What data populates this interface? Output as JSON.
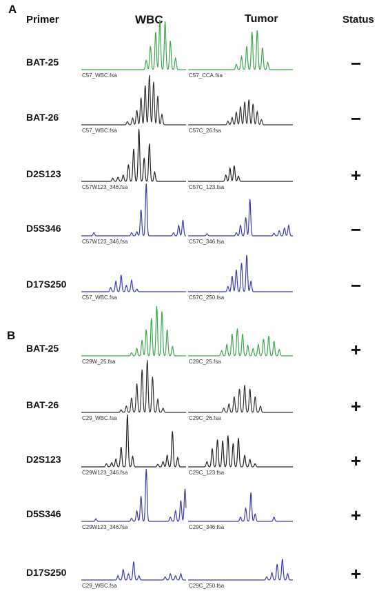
{
  "headers": {
    "primer": "Primer",
    "wbc": "WBC",
    "tumor": "Tumor",
    "status": "Status"
  },
  "panels": [
    {
      "letter": "A",
      "rows": [
        {
          "primer": "BAT-25",
          "status": "−",
          "color": "#3aa84a",
          "wbc": {
            "file": "C57_WBC.fsa",
            "peaks": [
              [
                0.62,
                0.18
              ],
              [
                0.66,
                0.45
              ],
              [
                0.71,
                0.72
              ],
              [
                0.75,
                0.95
              ],
              [
                0.8,
                0.92
              ],
              [
                0.85,
                0.55
              ],
              [
                0.9,
                0.22
              ]
            ]
          },
          "tumor": {
            "file": "C57_CCA.fsa",
            "peaks": [
              [
                0.46,
                0.1
              ],
              [
                0.51,
                0.25
              ],
              [
                0.56,
                0.45
              ],
              [
                0.61,
                0.72
              ],
              [
                0.66,
                0.75
              ],
              [
                0.71,
                0.42
              ],
              [
                0.76,
                0.14
              ]
            ]
          }
        },
        {
          "primer": "BAT-26",
          "status": "−",
          "color": "#333333",
          "wbc": {
            "file": "C57_WBC.fsa",
            "peaks": [
              [
                0.44,
                0.06
              ],
              [
                0.49,
                0.13
              ],
              [
                0.53,
                0.28
              ],
              [
                0.57,
                0.52
              ],
              [
                0.61,
                0.75
              ],
              [
                0.65,
                0.95
              ],
              [
                0.69,
                0.82
              ],
              [
                0.73,
                0.55
              ],
              [
                0.77,
                0.2
              ]
            ]
          },
          "tumor": {
            "file": "C57C_26.fsa",
            "peaks": [
              [
                0.38,
                0.07
              ],
              [
                0.42,
                0.14
              ],
              [
                0.46,
                0.24
              ],
              [
                0.5,
                0.35
              ],
              [
                0.54,
                0.44
              ],
              [
                0.58,
                0.48
              ],
              [
                0.62,
                0.4
              ],
              [
                0.66,
                0.25
              ],
              [
                0.7,
                0.1
              ]
            ]
          }
        },
        {
          "primer": "D2S123",
          "status": "+",
          "color": "#222222",
          "wbc": {
            "file": "C57W123_346.fsa",
            "peaks": [
              [
                0.3,
                0.06
              ],
              [
                0.35,
                0.08
              ],
              [
                0.4,
                0.12
              ],
              [
                0.45,
                0.32
              ],
              [
                0.5,
                0.62
              ],
              [
                0.55,
                1.0
              ],
              [
                0.6,
                0.45
              ],
              [
                0.65,
                0.72
              ],
              [
                0.7,
                0.18
              ]
            ]
          },
          "tumor": {
            "file": "C57C_123.fsa",
            "peaks": [
              [
                0.36,
                0.12
              ],
              [
                0.4,
                0.25
              ],
              [
                0.44,
                0.3
              ],
              [
                0.48,
                0.1
              ]
            ]
          }
        },
        {
          "primer": "D5S346",
          "status": "−",
          "color": "#3b3bb0",
          "wbc": {
            "file": "C57W123_346.fsa",
            "peaks": [
              [
                0.12,
                0.06
              ],
              [
                0.48,
                0.06
              ],
              [
                0.53,
                0.08
              ],
              [
                0.57,
                0.5
              ],
              [
                0.62,
                1.0
              ],
              [
                0.88,
                0.06
              ],
              [
                0.93,
                0.2
              ],
              [
                0.97,
                0.3
              ]
            ]
          },
          "tumor": {
            "file": "C57C_346.fsa",
            "peaks": [
              [
                0.18,
                0.04
              ],
              [
                0.46,
                0.06
              ],
              [
                0.5,
                0.2
              ],
              [
                0.55,
                0.35
              ],
              [
                0.59,
                0.7
              ],
              [
                0.82,
                0.05
              ],
              [
                0.87,
                0.1
              ],
              [
                0.92,
                0.15
              ],
              [
                0.96,
                0.2
              ]
            ]
          }
        },
        {
          "primer": "D17S250",
          "status": "−",
          "color": "#3b3bb0",
          "wbc": {
            "file": "C57_WBC.fsa",
            "peaks": [
              [
                0.28,
                0.08
              ],
              [
                0.33,
                0.2
              ],
              [
                0.38,
                0.32
              ],
              [
                0.43,
                0.12
              ],
              [
                0.48,
                0.22
              ],
              [
                0.53,
                0.05
              ]
            ]
          },
          "tumor": {
            "file": "C57C_250.fsa",
            "peaks": [
              [
                0.38,
                0.1
              ],
              [
                0.42,
                0.3
              ],
              [
                0.46,
                0.42
              ],
              [
                0.51,
                0.55
              ],
              [
                0.56,
                0.7
              ],
              [
                0.6,
                0.2
              ]
            ]
          }
        }
      ]
    },
    {
      "letter": "B",
      "rows": [
        {
          "primer": "BAT-25",
          "status": "+",
          "color": "#3aa84a",
          "wbc": {
            "file": "C29W_25.fsa",
            "peaks": [
              [
                0.48,
                0.06
              ],
              [
                0.53,
                0.14
              ],
              [
                0.58,
                0.3
              ],
              [
                0.62,
                0.5
              ],
              [
                0.67,
                0.72
              ],
              [
                0.72,
                0.95
              ],
              [
                0.77,
                0.85
              ],
              [
                0.82,
                0.5
              ],
              [
                0.87,
                0.18
              ]
            ]
          },
          "tumor": {
            "file": "C29C_25.fsa",
            "peaks": [
              [
                0.32,
                0.1
              ],
              [
                0.37,
                0.22
              ],
              [
                0.42,
                0.42
              ],
              [
                0.47,
                0.52
              ],
              [
                0.52,
                0.42
              ],
              [
                0.57,
                0.2
              ],
              [
                0.62,
                0.14
              ],
              [
                0.67,
                0.22
              ],
              [
                0.72,
                0.32
              ],
              [
                0.77,
                0.38
              ],
              [
                0.82,
                0.28
              ],
              [
                0.87,
                0.12
              ]
            ]
          }
        },
        {
          "primer": "BAT-26",
          "status": "+",
          "color": "#333333",
          "wbc": {
            "file": "C29_WBC.fsa",
            "peaks": [
              [
                0.38,
                0.05
              ],
              [
                0.43,
                0.12
              ],
              [
                0.48,
                0.28
              ],
              [
                0.53,
                0.55
              ],
              [
                0.58,
                0.82
              ],
              [
                0.63,
                1.0
              ],
              [
                0.68,
                0.68
              ],
              [
                0.73,
                0.25
              ],
              [
                0.78,
                0.08
              ]
            ]
          },
          "tumor": {
            "file": "C29C_26.fsa",
            "peaks": [
              [
                0.34,
                0.08
              ],
              [
                0.39,
                0.16
              ],
              [
                0.44,
                0.3
              ],
              [
                0.49,
                0.45
              ],
              [
                0.54,
                0.52
              ],
              [
                0.59,
                0.45
              ],
              [
                0.64,
                0.3
              ],
              [
                0.69,
                0.12
              ]
            ]
          }
        },
        {
          "primer": "D2S123",
          "status": "+",
          "color": "#222222",
          "wbc": {
            "file": "C29W123_346.fsa",
            "peaks": [
              [
                0.24,
                0.06
              ],
              [
                0.29,
                0.08
              ],
              [
                0.33,
                0.15
              ],
              [
                0.38,
                0.38
              ],
              [
                0.44,
                1.0
              ],
              [
                0.49,
                0.2
              ],
              [
                0.73,
                0.05
              ],
              [
                0.78,
                0.1
              ],
              [
                0.82,
                0.22
              ],
              [
                0.87,
                0.68
              ],
              [
                0.92,
                0.18
              ]
            ]
          },
          "tumor": {
            "file": "C29C_123.fsa",
            "peaks": [
              [
                0.18,
                0.1
              ],
              [
                0.23,
                0.35
              ],
              [
                0.28,
                0.52
              ],
              [
                0.33,
                0.5
              ],
              [
                0.38,
                0.6
              ],
              [
                0.43,
                0.45
              ],
              [
                0.48,
                0.55
              ],
              [
                0.54,
                0.22
              ],
              [
                0.59,
                0.14
              ],
              [
                0.64,
                0.06
              ]
            ]
          }
        },
        {
          "primer": "D5S346",
          "status": "+",
          "color": "#3b3bb0",
          "wbc": {
            "file": "C29W123_346.fsa",
            "peaks": [
              [
                0.14,
                0.05
              ],
              [
                0.48,
                0.06
              ],
              [
                0.53,
                0.2
              ],
              [
                0.57,
                0.48
              ],
              [
                0.62,
                1.0
              ],
              [
                0.85,
                0.08
              ],
              [
                0.9,
                0.2
              ],
              [
                0.95,
                0.4
              ],
              [
                0.99,
                0.62
              ]
            ]
          },
          "tumor": {
            "file": "C29C_346.fsa",
            "peaks": [
              [
                0.5,
                0.08
              ],
              [
                0.55,
                0.25
              ],
              [
                0.6,
                0.55
              ],
              [
                0.64,
                0.14
              ],
              [
                0.82,
                0.08
              ]
            ]
          }
        },
        {
          "primer": "D17S250",
          "status": "+",
          "color": "#3b3bb0",
          "wbc": {
            "file": "C29_WBC.fsa",
            "peaks": [
              [
                0.35,
                0.08
              ],
              [
                0.4,
                0.2
              ],
              [
                0.45,
                0.12
              ],
              [
                0.5,
                0.35
              ],
              [
                0.55,
                0.08
              ],
              [
                0.8,
                0.06
              ],
              [
                0.85,
                0.12
              ],
              [
                0.9,
                0.08
              ],
              [
                0.95,
                0.12
              ]
            ]
          },
          "tumor": {
            "file": "C29C_250.fsa",
            "peaks": [
              [
                0.75,
                0.06
              ],
              [
                0.8,
                0.14
              ],
              [
                0.85,
                0.3
              ],
              [
                0.9,
                0.4
              ],
              [
                0.95,
                0.12
              ]
            ]
          }
        }
      ]
    }
  ]
}
